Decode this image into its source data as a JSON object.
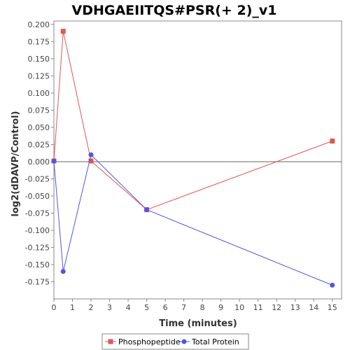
{
  "chart_data": {
    "type": "line",
    "title": "VDHGAEIITQS#PSR(+ 2)_v1",
    "xlabel": "Time (minutes)",
    "ylabel": "log2(dDAVP/Control)",
    "xlim": [
      0,
      15.5
    ],
    "ylim": [
      -0.2,
      0.205
    ],
    "x_ticks": [
      0,
      1,
      2,
      3,
      4,
      5,
      6,
      7,
      8,
      9,
      10,
      11,
      12,
      13,
      14,
      15
    ],
    "y_ticks": [
      -0.175,
      -0.15,
      -0.125,
      -0.1,
      -0.075,
      -0.05,
      -0.025,
      0.0,
      0.025,
      0.05,
      0.075,
      0.1,
      0.125,
      0.15,
      0.175,
      0.2
    ],
    "y_tick_labels": [
      "-0.175",
      "-0.150",
      "-0.125",
      "-0.100",
      "-0.075",
      "-0.050",
      "-0.025",
      "0.000",
      "0.025",
      "0.050",
      "0.075",
      "0.100",
      "0.125",
      "0.150",
      "0.175",
      "0.200"
    ],
    "zero_line": true,
    "grid": false,
    "legend_position": "bottom",
    "series": [
      {
        "name": "Phosphopeptide",
        "color": "#e05555",
        "marker": "square",
        "x": [
          0,
          0.5,
          2,
          5,
          15
        ],
        "y": [
          0.001,
          0.19,
          0.001,
          -0.07,
          0.03
        ]
      },
      {
        "name": "Total Protein",
        "color": "#5555e0",
        "marker": "circle",
        "x": [
          0,
          0.5,
          2,
          5,
          15
        ],
        "y": [
          0.001,
          -0.16,
          0.01,
          -0.07,
          -0.18
        ]
      }
    ]
  }
}
